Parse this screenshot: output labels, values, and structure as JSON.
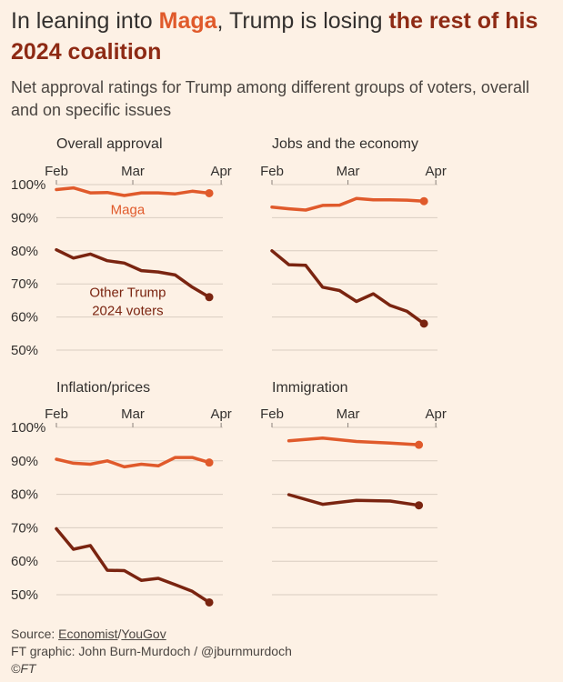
{
  "header": {
    "title_part1": "In leaning into ",
    "title_hl1": "Maga",
    "title_part2": ", Trump is losing ",
    "title_hl2": "the rest of his 2024 coalition",
    "subtitle": "Net approval ratings for Trump among different groups of voters, overall and on specific issues"
  },
  "colors": {
    "maga": "#e05a2b",
    "other": "#7a2410",
    "grid": "#d9cdc1",
    "text": "#33302e"
  },
  "chart_data": [
    {
      "type": "line",
      "title": "Overall approval",
      "x_ticks": [
        "Feb",
        "Mar",
        "Apr"
      ],
      "ylim": [
        50,
        100
      ],
      "y_ticks": [
        "100%",
        "90%",
        "80%",
        "70%",
        "60%",
        "50%"
      ],
      "x": [
        0,
        1,
        2,
        3,
        4,
        5,
        6,
        7,
        8,
        9
      ],
      "series": [
        {
          "name": "Maga",
          "label": "Maga",
          "values": [
            98.5,
            99,
            97.5,
            97.6,
            96.7,
            97.5,
            97.5,
            97.2,
            98,
            97.4
          ]
        },
        {
          "name": "Other Trump 2024 voters",
          "label_line1": "Other Trump",
          "label_line2": "2024 voters",
          "values": [
            80.3,
            77.8,
            79,
            77,
            76.3,
            74,
            73.6,
            72.7,
            69,
            66
          ]
        }
      ]
    },
    {
      "type": "line",
      "title": "Jobs and the economy",
      "x_ticks": [
        "Feb",
        "Mar",
        "Apr"
      ],
      "ylim": [
        50,
        100
      ],
      "x": [
        0,
        1,
        2,
        3,
        4,
        5,
        6,
        7,
        8,
        9
      ],
      "series": [
        {
          "name": "Maga",
          "values": [
            93.2,
            92.7,
            92.3,
            93.7,
            93.8,
            95.8,
            95.4,
            95.4,
            95.3,
            95
          ]
        },
        {
          "name": "Other Trump 2024 voters",
          "values": [
            80,
            75.8,
            75.6,
            69,
            68,
            64.7,
            67,
            63.5,
            61.7,
            58
          ]
        }
      ]
    },
    {
      "type": "line",
      "title": "Inflation/prices",
      "x_ticks": [
        "Feb",
        "Mar",
        "Apr"
      ],
      "ylim": [
        50,
        100
      ],
      "y_ticks": [
        "100%",
        "90%",
        "80%",
        "70%",
        "60%",
        "50%"
      ],
      "x": [
        0,
        1,
        2,
        3,
        4,
        5,
        6,
        7,
        8,
        9
      ],
      "series": [
        {
          "name": "Maga",
          "values": [
            90.5,
            89.3,
            89,
            90,
            88.2,
            89,
            88.5,
            91,
            91,
            89.5
          ]
        },
        {
          "name": "Other Trump 2024 voters",
          "values": [
            69.7,
            63.6,
            64.7,
            57.3,
            57.2,
            54.3,
            54.9,
            53,
            51,
            47.7
          ]
        }
      ]
    },
    {
      "type": "line",
      "title": "Immigration",
      "x_ticks": [
        "Feb",
        "Mar",
        "Apr"
      ],
      "ylim": [
        50,
        100
      ],
      "x": [
        1,
        3,
        5,
        7,
        8.7
      ],
      "series": [
        {
          "name": "Maga",
          "values": [
            96,
            96.8,
            95.8,
            95.3,
            94.8
          ]
        },
        {
          "name": "Other Trump 2024 voters",
          "values": [
            79.9,
            77,
            78.2,
            78,
            76.7
          ]
        }
      ]
    }
  ],
  "footer": {
    "source_prefix": "Source: ",
    "source_link1": "Economist",
    "source_sep": "/",
    "source_link2": "YouGov",
    "credit": "FT graphic: John Burn-Murdoch / @jburnmurdoch",
    "copyright": "©FT"
  }
}
